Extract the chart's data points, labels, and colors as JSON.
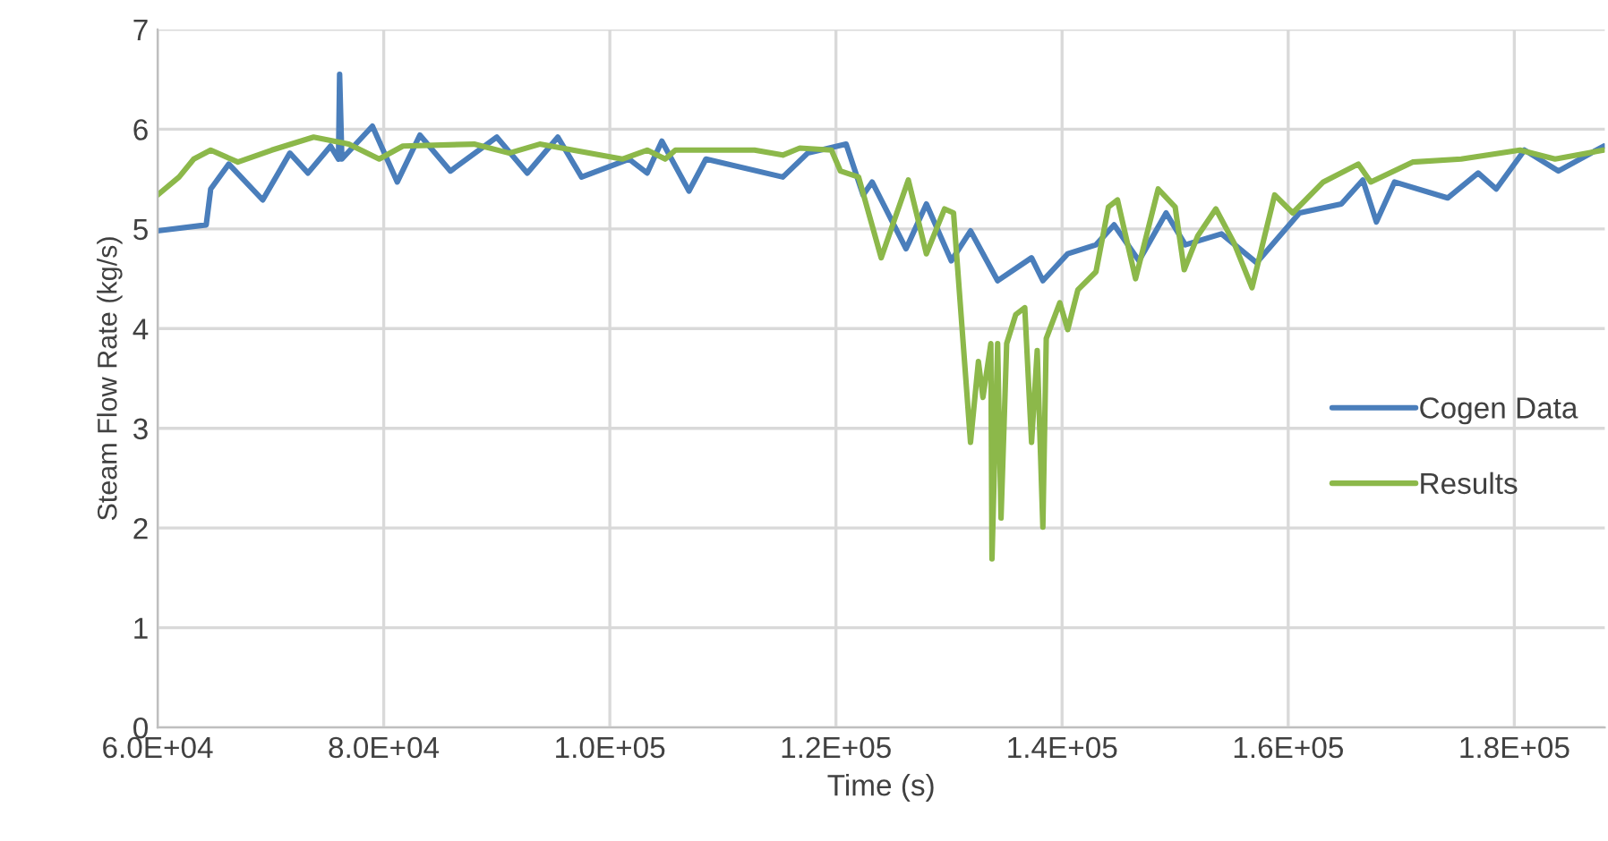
{
  "chart_data": {
    "type": "line",
    "xlabel": "Time (s)",
    "ylabel": "Steam Flow Rate (kg/s)",
    "xlim": [
      60000,
      188000
    ],
    "ylim": [
      0,
      7
    ],
    "xticks": [
      {
        "value": 60000,
        "label": "6.0E+04"
      },
      {
        "value": 80000,
        "label": "8.0E+04"
      },
      {
        "value": 100000,
        "label": "1.0E+05"
      },
      {
        "value": 120000,
        "label": "1.2E+05"
      },
      {
        "value": 140000,
        "label": "1.4E+05"
      },
      {
        "value": 160000,
        "label": "1.6E+05"
      },
      {
        "value": 180000,
        "label": "1.8E+05"
      }
    ],
    "yticks": [
      0,
      1,
      2,
      3,
      4,
      5,
      6,
      7
    ],
    "grid": true,
    "legend": "right",
    "marker": "none",
    "line_style": "solid",
    "series": [
      {
        "name": "Cogen Data",
        "color": "#4a7ebb",
        "x": [
          60000,
          64300,
          64700,
          66300,
          69300,
          71700,
          73300,
          75300,
          76000,
          76100,
          76300,
          79000,
          81200,
          83200,
          85900,
          90000,
          92700,
          95400,
          97500,
          101700,
          103300,
          104600,
          107000,
          108500,
          115300,
          117500,
          120900,
          122400,
          123200,
          126200,
          128000,
          130200,
          131900,
          134300,
          137300,
          138300,
          140500,
          143000,
          144600,
          146800,
          149200,
          150900,
          154100,
          157200,
          161000,
          164700,
          166600,
          167800,
          169400,
          174100,
          176800,
          178400,
          180900,
          183900,
          187900
        ],
        "values": [
          4.98,
          5.04,
          5.4,
          5.65,
          5.29,
          5.76,
          5.56,
          5.83,
          5.7,
          6.55,
          5.7,
          6.03,
          5.47,
          5.94,
          5.58,
          5.92,
          5.56,
          5.92,
          5.52,
          5.7,
          5.56,
          5.88,
          5.38,
          5.7,
          5.52,
          5.76,
          5.85,
          5.34,
          5.47,
          4.8,
          5.25,
          4.68,
          4.98,
          4.48,
          4.71,
          4.48,
          4.75,
          4.84,
          5.04,
          4.68,
          5.16,
          4.84,
          4.95,
          4.66,
          5.16,
          5.25,
          5.49,
          5.07,
          5.47,
          5.31,
          5.56,
          5.4,
          5.79,
          5.58,
          5.83
        ]
      },
      {
        "name": "Results",
        "color": "#8cb84a",
        "x": [
          60000,
          61900,
          63200,
          64700,
          67100,
          70100,
          73800,
          76900,
          79600,
          81700,
          88000,
          91100,
          93800,
          101100,
          103300,
          104900,
          105800,
          112800,
          115300,
          116800,
          119600,
          120400,
          122000,
          124000,
          126400,
          128000,
          129600,
          130400,
          131900,
          132600,
          133000,
          133700,
          133800,
          134300,
          134600,
          135100,
          135900,
          136700,
          137300,
          137800,
          138300,
          138600,
          139800,
          140500,
          141400,
          143000,
          144100,
          144900,
          146500,
          148500,
          150000,
          150800,
          152000,
          153600,
          155200,
          156800,
          158800,
          160400,
          163100,
          166200,
          167300,
          171000,
          175300,
          180500,
          183600,
          187900
        ],
        "values": [
          5.34,
          5.52,
          5.7,
          5.79,
          5.67,
          5.79,
          5.92,
          5.85,
          5.7,
          5.83,
          5.85,
          5.76,
          5.85,
          5.7,
          5.79,
          5.7,
          5.79,
          5.79,
          5.74,
          5.81,
          5.79,
          5.58,
          5.52,
          4.71,
          5.49,
          4.75,
          5.2,
          5.16,
          2.86,
          3.67,
          3.31,
          3.85,
          1.69,
          3.85,
          2.1,
          3.85,
          4.14,
          4.21,
          2.86,
          3.78,
          2.01,
          3.9,
          4.26,
          3.99,
          4.39,
          4.57,
          5.22,
          5.29,
          4.5,
          5.4,
          5.22,
          4.59,
          4.93,
          5.2,
          4.86,
          4.41,
          5.34,
          5.16,
          5.47,
          5.65,
          5.47,
          5.67,
          5.7,
          5.79,
          5.7,
          5.79
        ]
      }
    ]
  }
}
